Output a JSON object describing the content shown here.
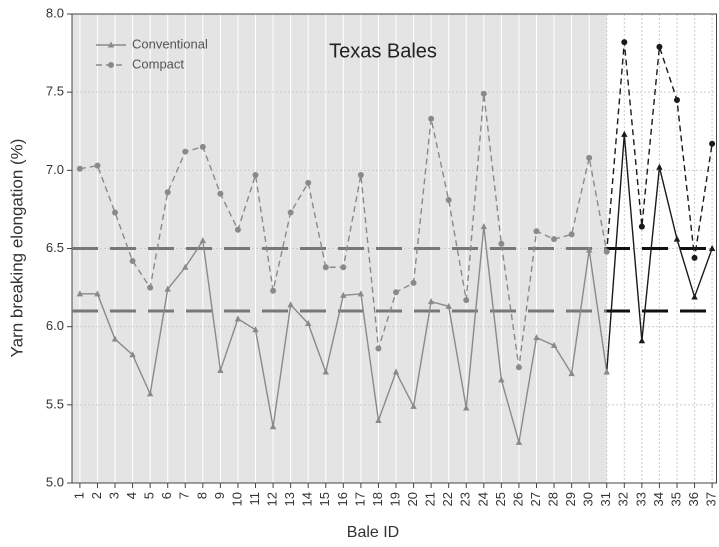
{
  "chart_data": {
    "type": "line",
    "title": "Texas Bales",
    "x_label": "Bale ID",
    "y_label": "Yarn breaking elongation (%)",
    "x": [
      1,
      2,
      3,
      4,
      5,
      6,
      7,
      8,
      9,
      10,
      11,
      12,
      13,
      14,
      15,
      16,
      17,
      18,
      19,
      20,
      21,
      22,
      23,
      24,
      25,
      26,
      27,
      28,
      29,
      30,
      31,
      32,
      33,
      34,
      35,
      36,
      37
    ],
    "xlim": [
      0.55,
      37.25
    ],
    "xticks": [
      1,
      2,
      3,
      4,
      5,
      6,
      7,
      8,
      9,
      10,
      11,
      12,
      13,
      14,
      15,
      16,
      17,
      18,
      19,
      20,
      21,
      22,
      23,
      24,
      25,
      26,
      27,
      28,
      29,
      30,
      31,
      32,
      33,
      34,
      35,
      36,
      37
    ],
    "ylim": [
      5.0,
      8.0
    ],
    "yticks": [
      {
        "value": 5.0,
        "label": "5.0"
      },
      5.5,
      {
        "value": 6.0,
        "label": "6.0"
      },
      6.5,
      {
        "value": 7.0,
        "label": "7.0"
      },
      7.5,
      {
        "value": 8.0,
        "label": "8.0"
      }
    ],
    "grid": true,
    "shade_xlim": [
      0.55,
      31
    ],
    "shade_color": "#e4e4e4",
    "hlines": [
      6.5,
      6.1
    ],
    "legend": "upper left",
    "series": [
      {
        "name": "Conventional",
        "color": "#8a8a8a",
        "highlight_color": "#1a1a1a",
        "marker": "triangle",
        "dash": "solid",
        "values": [
          6.21,
          6.21,
          5.92,
          5.82,
          5.57,
          6.24,
          6.38,
          6.55,
          5.72,
          6.05,
          5.98,
          5.36,
          6.14,
          6.02,
          5.71,
          6.2,
          6.21,
          5.4,
          5.71,
          5.49,
          6.16,
          6.13,
          5.48,
          6.64,
          5.66,
          5.26,
          5.93,
          5.88,
          5.7,
          6.49,
          5.71,
          7.23,
          5.91,
          7.02,
          6.56,
          6.19,
          6.5
        ]
      },
      {
        "name": "Compact",
        "color": "#8a8a8a",
        "highlight_color": "#1a1a1a",
        "marker": "circle",
        "dash": "dashed",
        "values": [
          7.01,
          7.03,
          6.73,
          6.42,
          6.25,
          6.86,
          7.12,
          7.15,
          6.85,
          6.62,
          6.97,
          6.23,
          6.73,
          6.92,
          6.38,
          6.38,
          6.97,
          5.86,
          6.22,
          6.28,
          7.33,
          6.81,
          6.17,
          7.49,
          6.53,
          5.74,
          6.61,
          6.56,
          6.59,
          7.08,
          6.48,
          7.82,
          6.64,
          7.79,
          7.45,
          6.44,
          7.17
        ]
      }
    ]
  }
}
